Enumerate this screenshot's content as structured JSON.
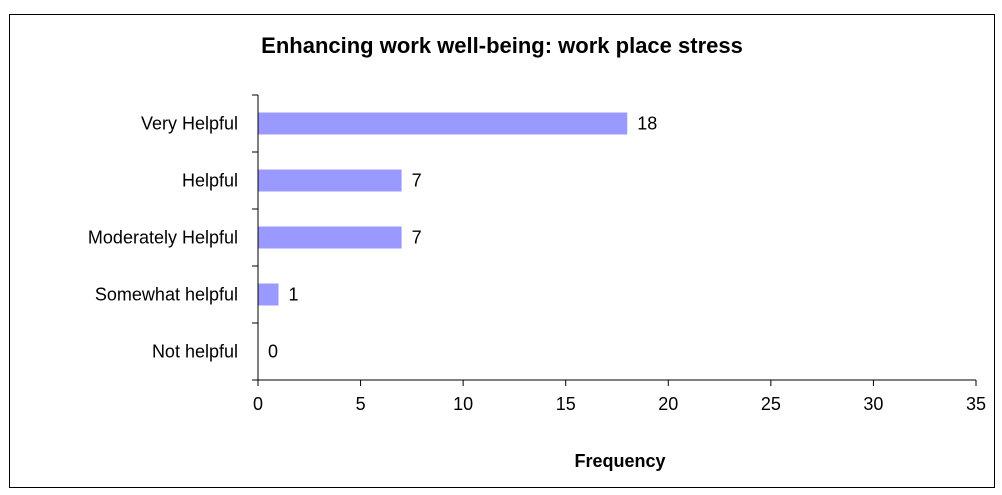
{
  "chart_data": {
    "type": "bar",
    "orientation": "horizontal",
    "title": "Enhancing work well-being: work place stress",
    "xlabel": "Frequency",
    "ylabel": "",
    "categories": [
      "Very Helpful",
      "Helpful",
      "Moderately Helpful",
      "Somewhat helpful",
      "Not helpful"
    ],
    "values": [
      18,
      7,
      7,
      1,
      0
    ],
    "value_labels": [
      "18",
      "7",
      "7",
      "1",
      "0"
    ],
    "xlim": [
      0,
      35
    ],
    "xticks": [
      0,
      5,
      10,
      15,
      20,
      25,
      30,
      35
    ],
    "xtick_labels": [
      "0",
      "5",
      "10",
      "15",
      "20",
      "25",
      "30",
      "35"
    ],
    "grid": false,
    "legend": "none",
    "colors": {
      "bar": "#9999ff",
      "axis": "#000000",
      "text": "#000000"
    }
  }
}
